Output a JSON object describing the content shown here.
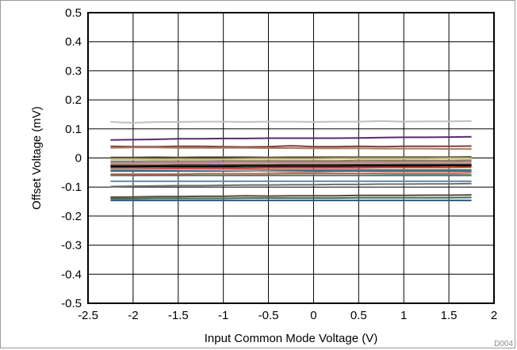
{
  "chart_data": {
    "type": "line",
    "title": "",
    "xlabel": "Input Common Mode Voltage (V)",
    "ylabel": "Offset Voltage (mV)",
    "xlim": [
      -2.5,
      2
    ],
    "ylim": [
      -0.5,
      0.5
    ],
    "xticks": [
      "-2.5",
      "-2",
      "-1.5",
      "-1",
      "-0.5",
      "0",
      "0.5",
      "1",
      "1.5",
      "2"
    ],
    "yticks": [
      "0.5",
      "0.4",
      "0.3",
      "0.2",
      "0.1",
      "0",
      "-0.1",
      "-0.2",
      "-0.3",
      "-0.4",
      "-0.5"
    ],
    "grid": true,
    "legend": "none",
    "figure_code": "D004",
    "x": [
      -2.25,
      -2.0,
      -1.75,
      -1.5,
      -1.25,
      -1.0,
      -0.75,
      -0.5,
      -0.25,
      0.0,
      0.25,
      0.5,
      0.75,
      1.0,
      1.25,
      1.5,
      1.75
    ],
    "series": [
      {
        "color": "#c0c0c0",
        "values": [
          0.124,
          0.121,
          0.124,
          0.124,
          0.125,
          0.125,
          0.124,
          0.125,
          0.125,
          0.124,
          0.125,
          0.125,
          0.127,
          0.125,
          0.126,
          0.126,
          0.127
        ]
      },
      {
        "color": "#5c2a6e",
        "values": [
          0.062,
          0.063,
          0.064,
          0.066,
          0.066,
          0.067,
          0.067,
          0.068,
          0.068,
          0.068,
          0.068,
          0.069,
          0.07,
          0.071,
          0.071,
          0.072,
          0.073
        ]
      },
      {
        "color": "#8b3a3a",
        "values": [
          0.04,
          0.039,
          0.039,
          0.04,
          0.04,
          0.039,
          0.038,
          0.039,
          0.042,
          0.039,
          0.039,
          0.04,
          0.039,
          0.04,
          0.04,
          0.04,
          0.041
        ]
      },
      {
        "color": "#a08060",
        "values": [
          0.035,
          0.036,
          0.036,
          0.035,
          0.035,
          0.035,
          0.035,
          0.034,
          0.034,
          0.033,
          0.033,
          0.033,
          0.032,
          0.032,
          0.032,
          0.031,
          0.031
        ]
      },
      {
        "color": "#6a5a3c",
        "values": [
          0.002,
          0.002,
          0.003,
          0.002,
          0.003,
          0.003,
          0.003,
          0.002,
          0.003,
          0.003,
          0.003,
          0.003,
          0.003,
          0.003,
          0.003,
          0.003,
          0.004
        ]
      },
      {
        "color": "#c8c078",
        "values": [
          -0.005,
          -0.005,
          -0.004,
          -0.004,
          -0.004,
          -0.004,
          -0.003,
          -0.003,
          -0.003,
          -0.003,
          -0.002,
          -0.002,
          -0.002,
          -0.002,
          -0.002,
          -0.001,
          -0.001
        ]
      },
      {
        "color": "#8a7a5a",
        "values": [
          -0.012,
          -0.012,
          -0.011,
          -0.011,
          -0.011,
          -0.01,
          -0.01,
          -0.01,
          -0.01,
          -0.01,
          -0.01,
          -0.009,
          -0.009,
          -0.009,
          -0.009,
          -0.009,
          -0.008
        ]
      },
      {
        "color": "#b07aa0",
        "values": [
          -0.018,
          -0.018,
          -0.017,
          -0.017,
          -0.017,
          -0.016,
          -0.016,
          -0.016,
          -0.015,
          -0.015,
          -0.015,
          -0.015,
          -0.014,
          -0.014,
          -0.014,
          -0.014,
          -0.013
        ]
      },
      {
        "color": "#d2b48c",
        "values": [
          -0.022,
          -0.022,
          -0.021,
          -0.021,
          -0.021,
          -0.02,
          -0.02,
          -0.02,
          -0.02,
          -0.019,
          -0.019,
          -0.019,
          -0.019,
          -0.018,
          -0.018,
          -0.018,
          -0.018
        ]
      },
      {
        "color": "#404040",
        "values": [
          -0.025,
          -0.025,
          -0.025,
          -0.024,
          -0.024,
          -0.024,
          -0.024,
          -0.024,
          -0.023,
          -0.023,
          -0.023,
          -0.023,
          -0.023,
          -0.022,
          -0.022,
          -0.022,
          -0.022
        ]
      },
      {
        "color": "#000000",
        "values": [
          -0.03,
          -0.03,
          -0.029,
          -0.029,
          -0.029,
          -0.029,
          -0.028,
          -0.028,
          -0.028,
          -0.028,
          -0.028,
          -0.027,
          -0.027,
          -0.027,
          -0.027,
          -0.026,
          -0.026
        ]
      },
      {
        "color": "#e02020",
        "values": [
          -0.035,
          -0.035,
          -0.035,
          -0.034,
          -0.034,
          -0.034,
          -0.034,
          -0.033,
          -0.033,
          -0.033,
          -0.033,
          -0.033,
          -0.032,
          -0.032,
          -0.032,
          -0.032,
          -0.031
        ]
      },
      {
        "color": "#6a8a6a",
        "values": [
          -0.04,
          -0.04,
          -0.04,
          -0.04,
          -0.04,
          -0.04,
          -0.04,
          -0.04,
          -0.04,
          -0.04,
          -0.04,
          -0.04,
          -0.04,
          -0.04,
          -0.04,
          -0.04,
          -0.04
        ]
      },
      {
        "color": "#3a6a8a",
        "values": [
          -0.045,
          -0.045,
          -0.045,
          -0.045,
          -0.045,
          -0.045,
          -0.045,
          -0.045,
          -0.045,
          -0.045,
          -0.045,
          -0.045,
          -0.045,
          -0.045,
          -0.045,
          -0.045,
          -0.045
        ]
      },
      {
        "color": "#a0a0a0",
        "values": [
          -0.038,
          -0.038,
          -0.039,
          -0.04,
          -0.041,
          -0.042,
          -0.044,
          -0.046,
          -0.048,
          -0.05,
          -0.052,
          -0.053,
          -0.054,
          -0.055,
          -0.056,
          -0.057,
          -0.058
        ]
      },
      {
        "color": "#e06050",
        "values": [
          -0.055,
          -0.055,
          -0.055,
          -0.055,
          -0.054,
          -0.054,
          -0.054,
          -0.054,
          -0.053,
          -0.053,
          -0.053,
          -0.053,
          -0.052,
          -0.052,
          -0.052,
          -0.052,
          -0.051
        ]
      },
      {
        "color": "#3a7a5a",
        "values": [
          -0.06,
          -0.06,
          -0.06,
          -0.06,
          -0.06,
          -0.06,
          -0.06,
          -0.06,
          -0.06,
          -0.06,
          -0.06,
          -0.06,
          -0.06,
          -0.06,
          -0.06,
          -0.06,
          -0.06
        ]
      },
      {
        "color": "#707070",
        "values": [
          -0.098,
          -0.097,
          -0.096,
          -0.095,
          -0.095,
          -0.094,
          -0.093,
          -0.093,
          -0.092,
          -0.092,
          -0.091,
          -0.091,
          -0.09,
          -0.09,
          -0.089,
          -0.089,
          -0.088
        ]
      },
      {
        "color": "#6a8aa0",
        "values": [
          -0.08,
          -0.08,
          -0.08,
          -0.08,
          -0.08,
          -0.08,
          -0.08,
          -0.08,
          -0.08,
          -0.08,
          -0.08,
          -0.08,
          -0.08,
          -0.08,
          -0.08,
          -0.08,
          -0.08
        ]
      },
      {
        "color": "#5a4a3a",
        "values": [
          -0.135,
          -0.134,
          -0.133,
          -0.133,
          -0.132,
          -0.132,
          -0.13,
          -0.131,
          -0.13,
          -0.13,
          -0.13,
          -0.129,
          -0.129,
          -0.129,
          -0.128,
          -0.128,
          -0.127
        ]
      },
      {
        "color": "#3a6a5a",
        "values": [
          -0.14,
          -0.14,
          -0.139,
          -0.139,
          -0.139,
          -0.139,
          -0.138,
          -0.138,
          -0.138,
          -0.138,
          -0.138,
          -0.137,
          -0.137,
          -0.137,
          -0.137,
          -0.137,
          -0.136
        ]
      },
      {
        "color": "#2a5a7a",
        "values": [
          -0.146,
          -0.146,
          -0.146,
          -0.146,
          -0.146,
          -0.146,
          -0.146,
          -0.146,
          -0.146,
          -0.146,
          -0.146,
          -0.146,
          -0.146,
          -0.146,
          -0.146,
          -0.146,
          -0.146
        ]
      }
    ]
  }
}
